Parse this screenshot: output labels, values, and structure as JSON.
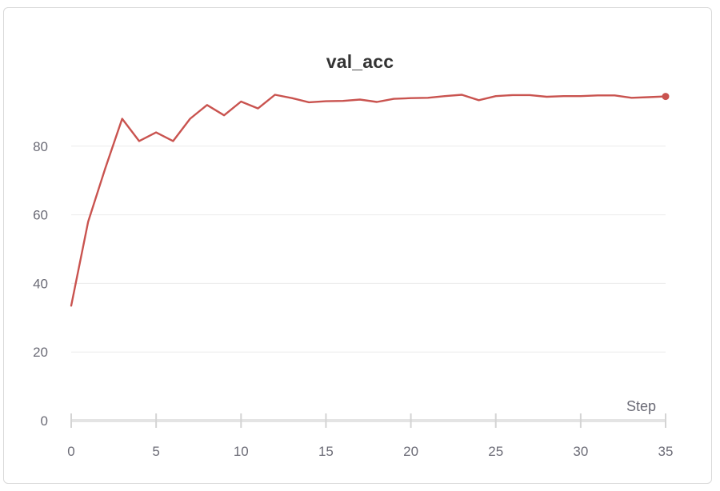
{
  "chart_data": {
    "type": "line",
    "title": "val_acc",
    "xlabel": "Step",
    "ylabel": "",
    "xlim": [
      0,
      35
    ],
    "ylim": [
      0,
      100
    ],
    "x_ticks": [
      0,
      5,
      10,
      15,
      20,
      25,
      30,
      35
    ],
    "y_ticks": [
      0,
      20,
      40,
      60,
      80
    ],
    "grid": "horizontal",
    "legend": "none",
    "series": [
      {
        "color": "#c9534f",
        "x": [
          0,
          1,
          2,
          3,
          4,
          5,
          6,
          7,
          8,
          9,
          10,
          11,
          12,
          13,
          14,
          15,
          16,
          17,
          18,
          19,
          20,
          21,
          22,
          23,
          24,
          25,
          26,
          27,
          28,
          29,
          30,
          31,
          32,
          33,
          34,
          35
        ],
        "y": [
          33.5,
          58,
          73.5,
          88,
          81.5,
          84,
          81.5,
          88,
          92,
          89,
          93,
          91,
          95,
          94,
          92.8,
          93.1,
          93.2,
          93.6,
          92.9,
          93.8,
          94,
          94.1,
          94.6,
          95,
          93.4,
          94.6,
          94.9,
          94.9,
          94.4,
          94.6,
          94.6,
          94.8,
          94.8,
          94.1,
          94.3,
          94.5
        ]
      }
    ]
  }
}
